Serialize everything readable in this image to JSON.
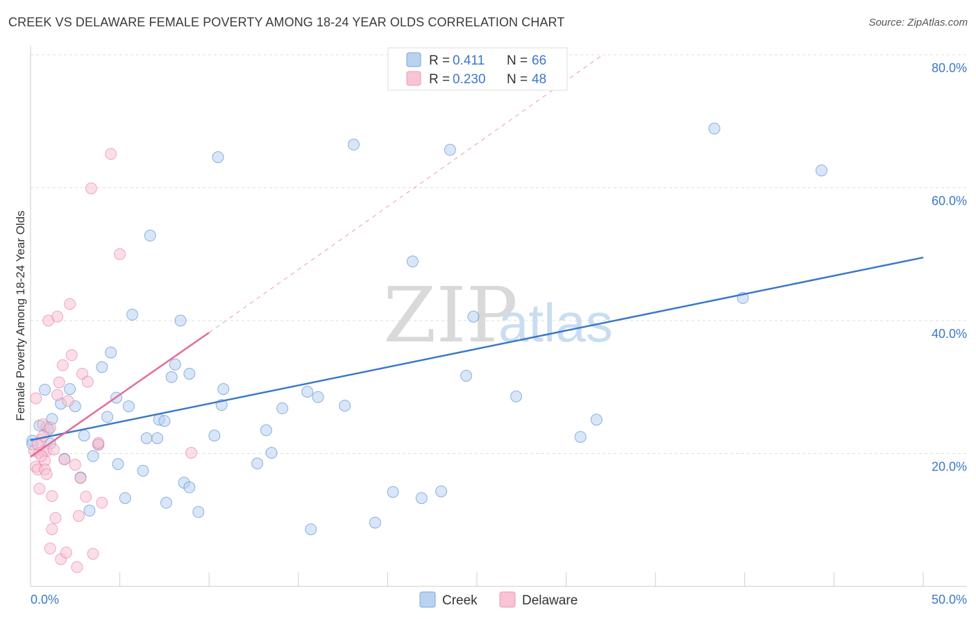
{
  "title": "CREEK VS DELAWARE FEMALE POVERTY AMONG 18-24 YEAR OLDS CORRELATION CHART",
  "source": "Source: ZipAtlas.com",
  "watermark": {
    "part1": "ZIP",
    "part2": "atlas"
  },
  "chart_data": {
    "type": "scatter",
    "xlabel": "",
    "ylabel": "Female Poverty Among 18-24 Year Olds",
    "xlim": [
      0,
      50
    ],
    "ylim": [
      0,
      80
    ],
    "x_tick_labels": {
      "min": "0.0%",
      "max": "50.0%"
    },
    "y_ticks": [
      20,
      40,
      60,
      80
    ],
    "y_tick_labels": [
      "20.0%",
      "40.0%",
      "60.0%",
      "80.0%"
    ],
    "legend_stats": [
      {
        "r_label": "R = ",
        "r_value": "0.411",
        "n_label": "N = ",
        "n_value": "66"
      },
      {
        "r_label": "R = ",
        "r_value": "0.230",
        "n_label": "N = ",
        "n_value": "48"
      }
    ],
    "series": [
      {
        "name": "Creek",
        "color": "#3a78c9",
        "fill": "#b8d2f0",
        "trend": {
          "x0": 0,
          "y0": 22.0,
          "x1": 50,
          "y1": 49.5
        },
        "points": [
          [
            0.1,
            21.9
          ],
          [
            0.5,
            24.2
          ],
          [
            0.8,
            29.6
          ],
          [
            0.9,
            24.0
          ],
          [
            1.0,
            23.6
          ],
          [
            1.2,
            25.2
          ],
          [
            1.1,
            21.5
          ],
          [
            1.7,
            27.5
          ],
          [
            1.9,
            19.2
          ],
          [
            2.2,
            29.7
          ],
          [
            2.5,
            27.1
          ],
          [
            2.8,
            16.4
          ],
          [
            3.0,
            22.7
          ],
          [
            3.3,
            11.4
          ],
          [
            3.5,
            19.6
          ],
          [
            3.8,
            21.4
          ],
          [
            4.0,
            33.0
          ],
          [
            4.3,
            25.5
          ],
          [
            4.5,
            35.2
          ],
          [
            4.8,
            28.4
          ],
          [
            4.9,
            18.4
          ],
          [
            5.3,
            13.3
          ],
          [
            5.5,
            27.1
          ],
          [
            5.7,
            40.9
          ],
          [
            6.3,
            17.4
          ],
          [
            6.5,
            22.3
          ],
          [
            6.7,
            52.8
          ],
          [
            7.1,
            22.3
          ],
          [
            7.2,
            25.1
          ],
          [
            7.5,
            24.9
          ],
          [
            7.6,
            12.6
          ],
          [
            7.9,
            31.5
          ],
          [
            8.1,
            33.4
          ],
          [
            8.4,
            40.0
          ],
          [
            8.6,
            15.6
          ],
          [
            8.9,
            14.9
          ],
          [
            8.9,
            32.0
          ],
          [
            9.4,
            11.2
          ],
          [
            10.3,
            22.7
          ],
          [
            10.5,
            64.6
          ],
          [
            10.7,
            27.3
          ],
          [
            10.8,
            29.7
          ],
          [
            12.7,
            18.5
          ],
          [
            13.2,
            23.5
          ],
          [
            13.5,
            20.1
          ],
          [
            14.1,
            26.8
          ],
          [
            15.5,
            29.3
          ],
          [
            15.7,
            8.6
          ],
          [
            16.1,
            28.5
          ],
          [
            17.6,
            27.2
          ],
          [
            18.1,
            66.5
          ],
          [
            19.3,
            9.6
          ],
          [
            20.3,
            14.2
          ],
          [
            21.4,
            48.9
          ],
          [
            21.9,
            13.3
          ],
          [
            23.0,
            14.3
          ],
          [
            23.5,
            65.7
          ],
          [
            24.4,
            31.7
          ],
          [
            24.8,
            40.6
          ],
          [
            27.2,
            28.6
          ],
          [
            30.8,
            22.5
          ],
          [
            31.7,
            25.1
          ],
          [
            38.3,
            68.9
          ],
          [
            39.9,
            43.4
          ],
          [
            44.3,
            62.6
          ],
          [
            0.1,
            21.4
          ]
        ]
      },
      {
        "name": "Delaware",
        "color": "#e36b98",
        "fill": "#f8c3d4",
        "trend": {
          "x0": 0,
          "y0": 19.5,
          "x1": 10,
          "y1": 38.2
        },
        "trend_dashed": {
          "x0": 10,
          "y0": 38.2,
          "x1": 32,
          "y1": 79.9
        },
        "points": [
          [
            0.2,
            20.4
          ],
          [
            0.3,
            28.3
          ],
          [
            0.3,
            18.0
          ],
          [
            0.4,
            17.6
          ],
          [
            0.5,
            20.1
          ],
          [
            0.5,
            14.7
          ],
          [
            0.6,
            22.1
          ],
          [
            0.7,
            24.4
          ],
          [
            0.7,
            22.6
          ],
          [
            0.7,
            20.3
          ],
          [
            0.8,
            18.9
          ],
          [
            0.8,
            17.6
          ],
          [
            0.9,
            20.4
          ],
          [
            0.9,
            16.9
          ],
          [
            1.0,
            40.0
          ],
          [
            1.1,
            23.9
          ],
          [
            1.1,
            5.7
          ],
          [
            1.2,
            13.6
          ],
          [
            1.2,
            8.6
          ],
          [
            1.3,
            20.6
          ],
          [
            1.4,
            10.3
          ],
          [
            1.5,
            40.6
          ],
          [
            1.5,
            28.8
          ],
          [
            1.6,
            30.7
          ],
          [
            1.7,
            4.1
          ],
          [
            1.8,
            33.3
          ],
          [
            1.9,
            19.1
          ],
          [
            2.0,
            5.1
          ],
          [
            2.1,
            27.9
          ],
          [
            2.2,
            42.5
          ],
          [
            2.3,
            34.8
          ],
          [
            2.5,
            18.3
          ],
          [
            2.6,
            2.9
          ],
          [
            2.7,
            10.6
          ],
          [
            2.8,
            16.3
          ],
          [
            2.9,
            32.0
          ],
          [
            3.1,
            13.5
          ],
          [
            3.2,
            30.8
          ],
          [
            3.5,
            4.9
          ],
          [
            3.8,
            21.3
          ],
          [
            3.8,
            21.6
          ],
          [
            4.0,
            12.6
          ],
          [
            4.5,
            65.1
          ],
          [
            5.0,
            50.0
          ],
          [
            3.4,
            59.9
          ],
          [
            9.0,
            20.1
          ],
          [
            0.4,
            21.4
          ],
          [
            0.6,
            19.6
          ]
        ]
      }
    ]
  }
}
